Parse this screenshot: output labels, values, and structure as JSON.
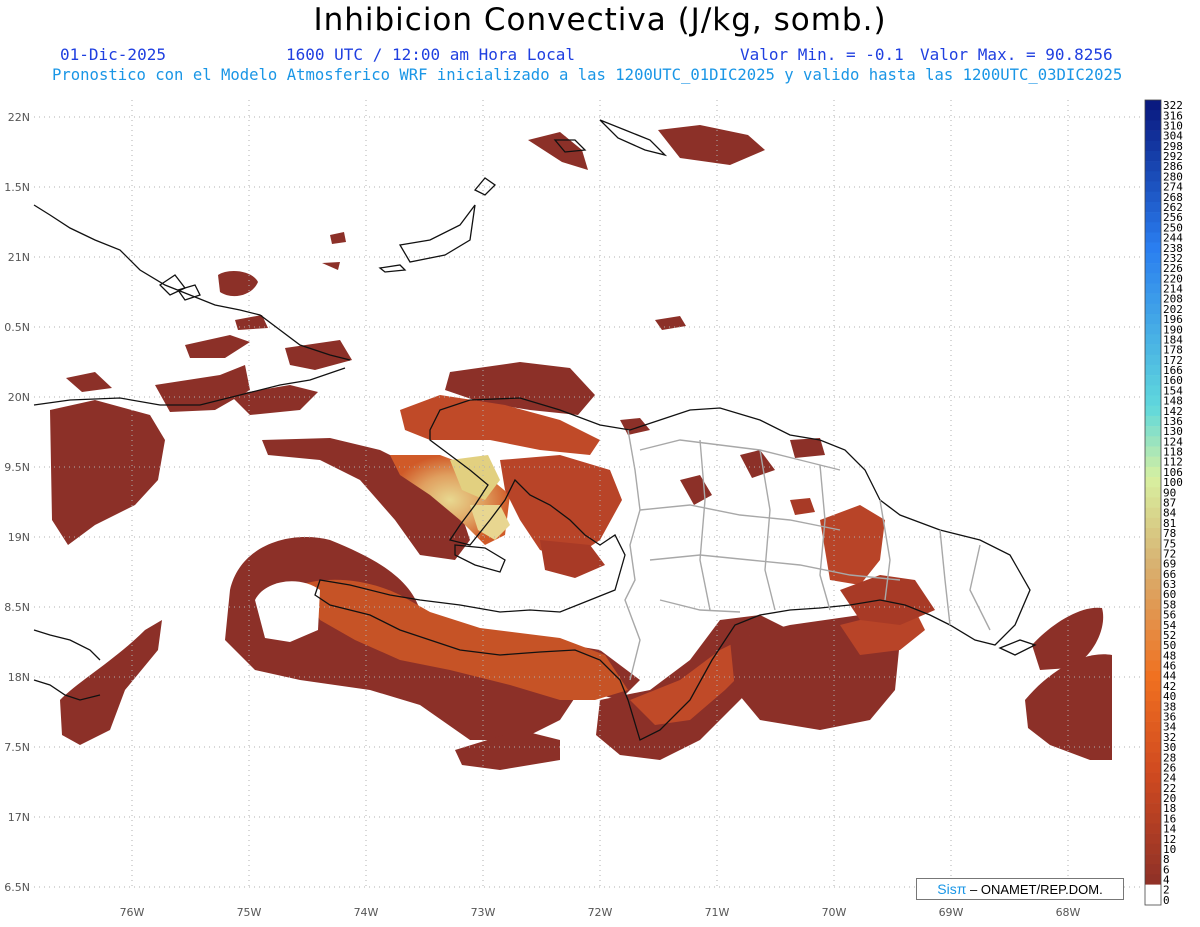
{
  "header": {
    "title": "Inhibicion Convectiva (J/kg, somb.)",
    "date": "01-Dic-2025",
    "time": "1600 UTC / 12:00 am Hora Local",
    "min": "Valor Min. = -0.1",
    "max": "Valor Max. = 90.8256",
    "forecast": "Pronostico con el Modelo Atmosferico WRF inicializado a las 1200UTC_01DIC2025 y valido hasta las  1200UTC_03DIC2025"
  },
  "axes": {
    "lat_labels": [
      "22N",
      "1.5N",
      "21N",
      "0.5N",
      "20N",
      "9.5N",
      "19N",
      "8.5N",
      "18N",
      "7.5N",
      "17N",
      "6.5N"
    ],
    "lon_labels": [
      "76W",
      "75W",
      "74W",
      "73W",
      "72W",
      "71W",
      "70W",
      "69W",
      "68W"
    ]
  },
  "colorbar": {
    "labels": [
      "322",
      "316",
      "310",
      "304",
      "298",
      "292",
      "286",
      "280",
      "274",
      "268",
      "262",
      "256",
      "250",
      "244",
      "238",
      "232",
      "226",
      "220",
      "214",
      "208",
      "202",
      "196",
      "190",
      "184",
      "178",
      "172",
      "166",
      "160",
      "154",
      "148",
      "142",
      "136",
      "130",
      "124",
      "118",
      "112",
      "106",
      "100",
      "90",
      "87",
      "84",
      "81",
      "78",
      "75",
      "72",
      "69",
      "66",
      "63",
      "60",
      "58",
      "56",
      "54",
      "52",
      "50",
      "48",
      "46",
      "44",
      "42",
      "40",
      "38",
      "36",
      "34",
      "32",
      "30",
      "28",
      "26",
      "24",
      "22",
      "20",
      "18",
      "16",
      "14",
      "12",
      "10",
      "8",
      "6",
      "4",
      "2",
      "0"
    ],
    "colors": {
      "high": "#0a1a80",
      "mid_blue": "#2a7ef0",
      "cyan": "#60d8dc",
      "light_green": "#d8f0a0",
      "tan": "#d8b070",
      "orange": "#f07020",
      "red_orange": "#d04a20",
      "dark_red": "#8c3028",
      "zero": "#ffffff"
    }
  },
  "credit": {
    "sis": "Sisπ",
    "org": "– ONAMET/REP.DOM."
  }
}
